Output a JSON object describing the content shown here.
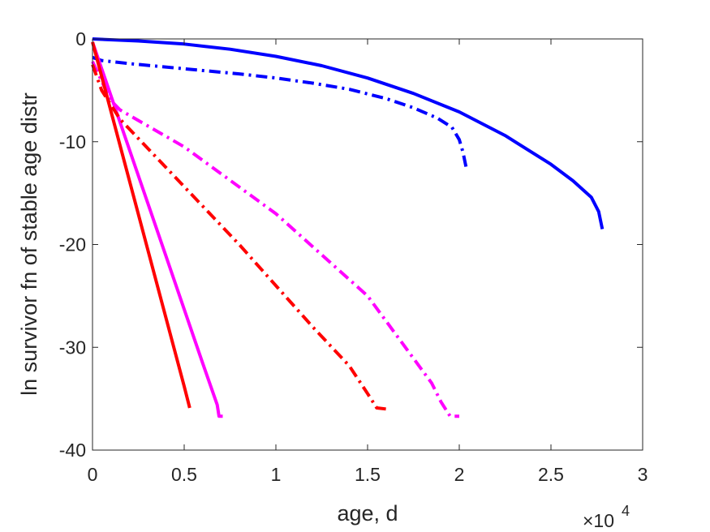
{
  "chart_data": {
    "type": "line",
    "xlabel": "age, d",
    "ylabel": "ln survivor fn of stable age distr",
    "x_exponent_label": "×10",
    "x_exponent_power": "4",
    "xlim": [
      0,
      3
    ],
    "ylim": [
      -40,
      0
    ],
    "xticks": [
      0,
      0.5,
      1,
      1.5,
      2,
      2.5,
      3
    ],
    "yticks": [
      0,
      -10,
      -20,
      -30,
      -40
    ],
    "xtick_labels": [
      "0",
      "0.5",
      "1",
      "1.5",
      "2",
      "2.5",
      "3"
    ],
    "ytick_labels": [
      "0",
      "-10",
      "-20",
      "-30",
      "-40"
    ],
    "grid": false,
    "series": [
      {
        "color": "#0000ff",
        "style": "solid",
        "x": [
          0,
          0.25,
          0.5,
          0.75,
          1.0,
          1.25,
          1.5,
          1.75,
          2.0,
          2.25,
          2.5,
          2.62,
          2.72,
          2.76,
          2.78
        ],
        "y": [
          0,
          -0.2,
          -0.5,
          -1.0,
          -1.7,
          -2.6,
          -3.8,
          -5.3,
          -7.1,
          -9.4,
          -12.2,
          -13.8,
          -15.4,
          -16.8,
          -18.5
        ]
      },
      {
        "color": "#0000ff",
        "style": "dashdot",
        "x": [
          0,
          0.05,
          0.2,
          0.5,
          0.8,
          1.0,
          1.2,
          1.4,
          1.6,
          1.75,
          1.88,
          1.96,
          2.0,
          2.02,
          2.04
        ],
        "y": [
          -1.8,
          -2.1,
          -2.4,
          -2.9,
          -3.4,
          -3.8,
          -4.3,
          -4.9,
          -5.8,
          -6.7,
          -7.7,
          -8.6,
          -9.8,
          -11.0,
          -12.7
        ]
      },
      {
        "color": "#ff00ff",
        "style": "solid",
        "x": [
          0,
          0.1,
          0.2,
          0.3,
          0.4,
          0.5,
          0.6,
          0.68,
          0.69,
          0.71
        ],
        "y": [
          -0.3,
          -5.5,
          -10.7,
          -15.9,
          -21.1,
          -26.3,
          -31.5,
          -35.6,
          -36.7,
          -36.7
        ]
      },
      {
        "color": "#ff00ff",
        "style": "dashdot",
        "x": [
          0,
          0.1,
          0.15,
          0.5,
          1.0,
          1.5,
          1.85,
          1.9,
          1.95,
          2.0
        ],
        "y": [
          -2.2,
          -6.0,
          -6.9,
          -10.5,
          -17.0,
          -25.0,
          -33.5,
          -35.3,
          -36.7,
          -36.7
        ]
      },
      {
        "color": "#ff0000",
        "style": "solid",
        "x": [
          0,
          0.1,
          0.2,
          0.3,
          0.4,
          0.5,
          0.53
        ],
        "y": [
          -0.3,
          -7.0,
          -13.7,
          -20.4,
          -27.1,
          -33.8,
          -35.9
        ]
      },
      {
        "color": "#ff0000",
        "style": "dashdot",
        "x": [
          0,
          0.05,
          0.15,
          0.4,
          0.8,
          1.2,
          1.4,
          1.5,
          1.55,
          1.6
        ],
        "y": [
          -2.5,
          -5.0,
          -7.8,
          -12.5,
          -20.0,
          -28.0,
          -31.8,
          -34.5,
          -35.9,
          -36.0
        ]
      }
    ]
  }
}
